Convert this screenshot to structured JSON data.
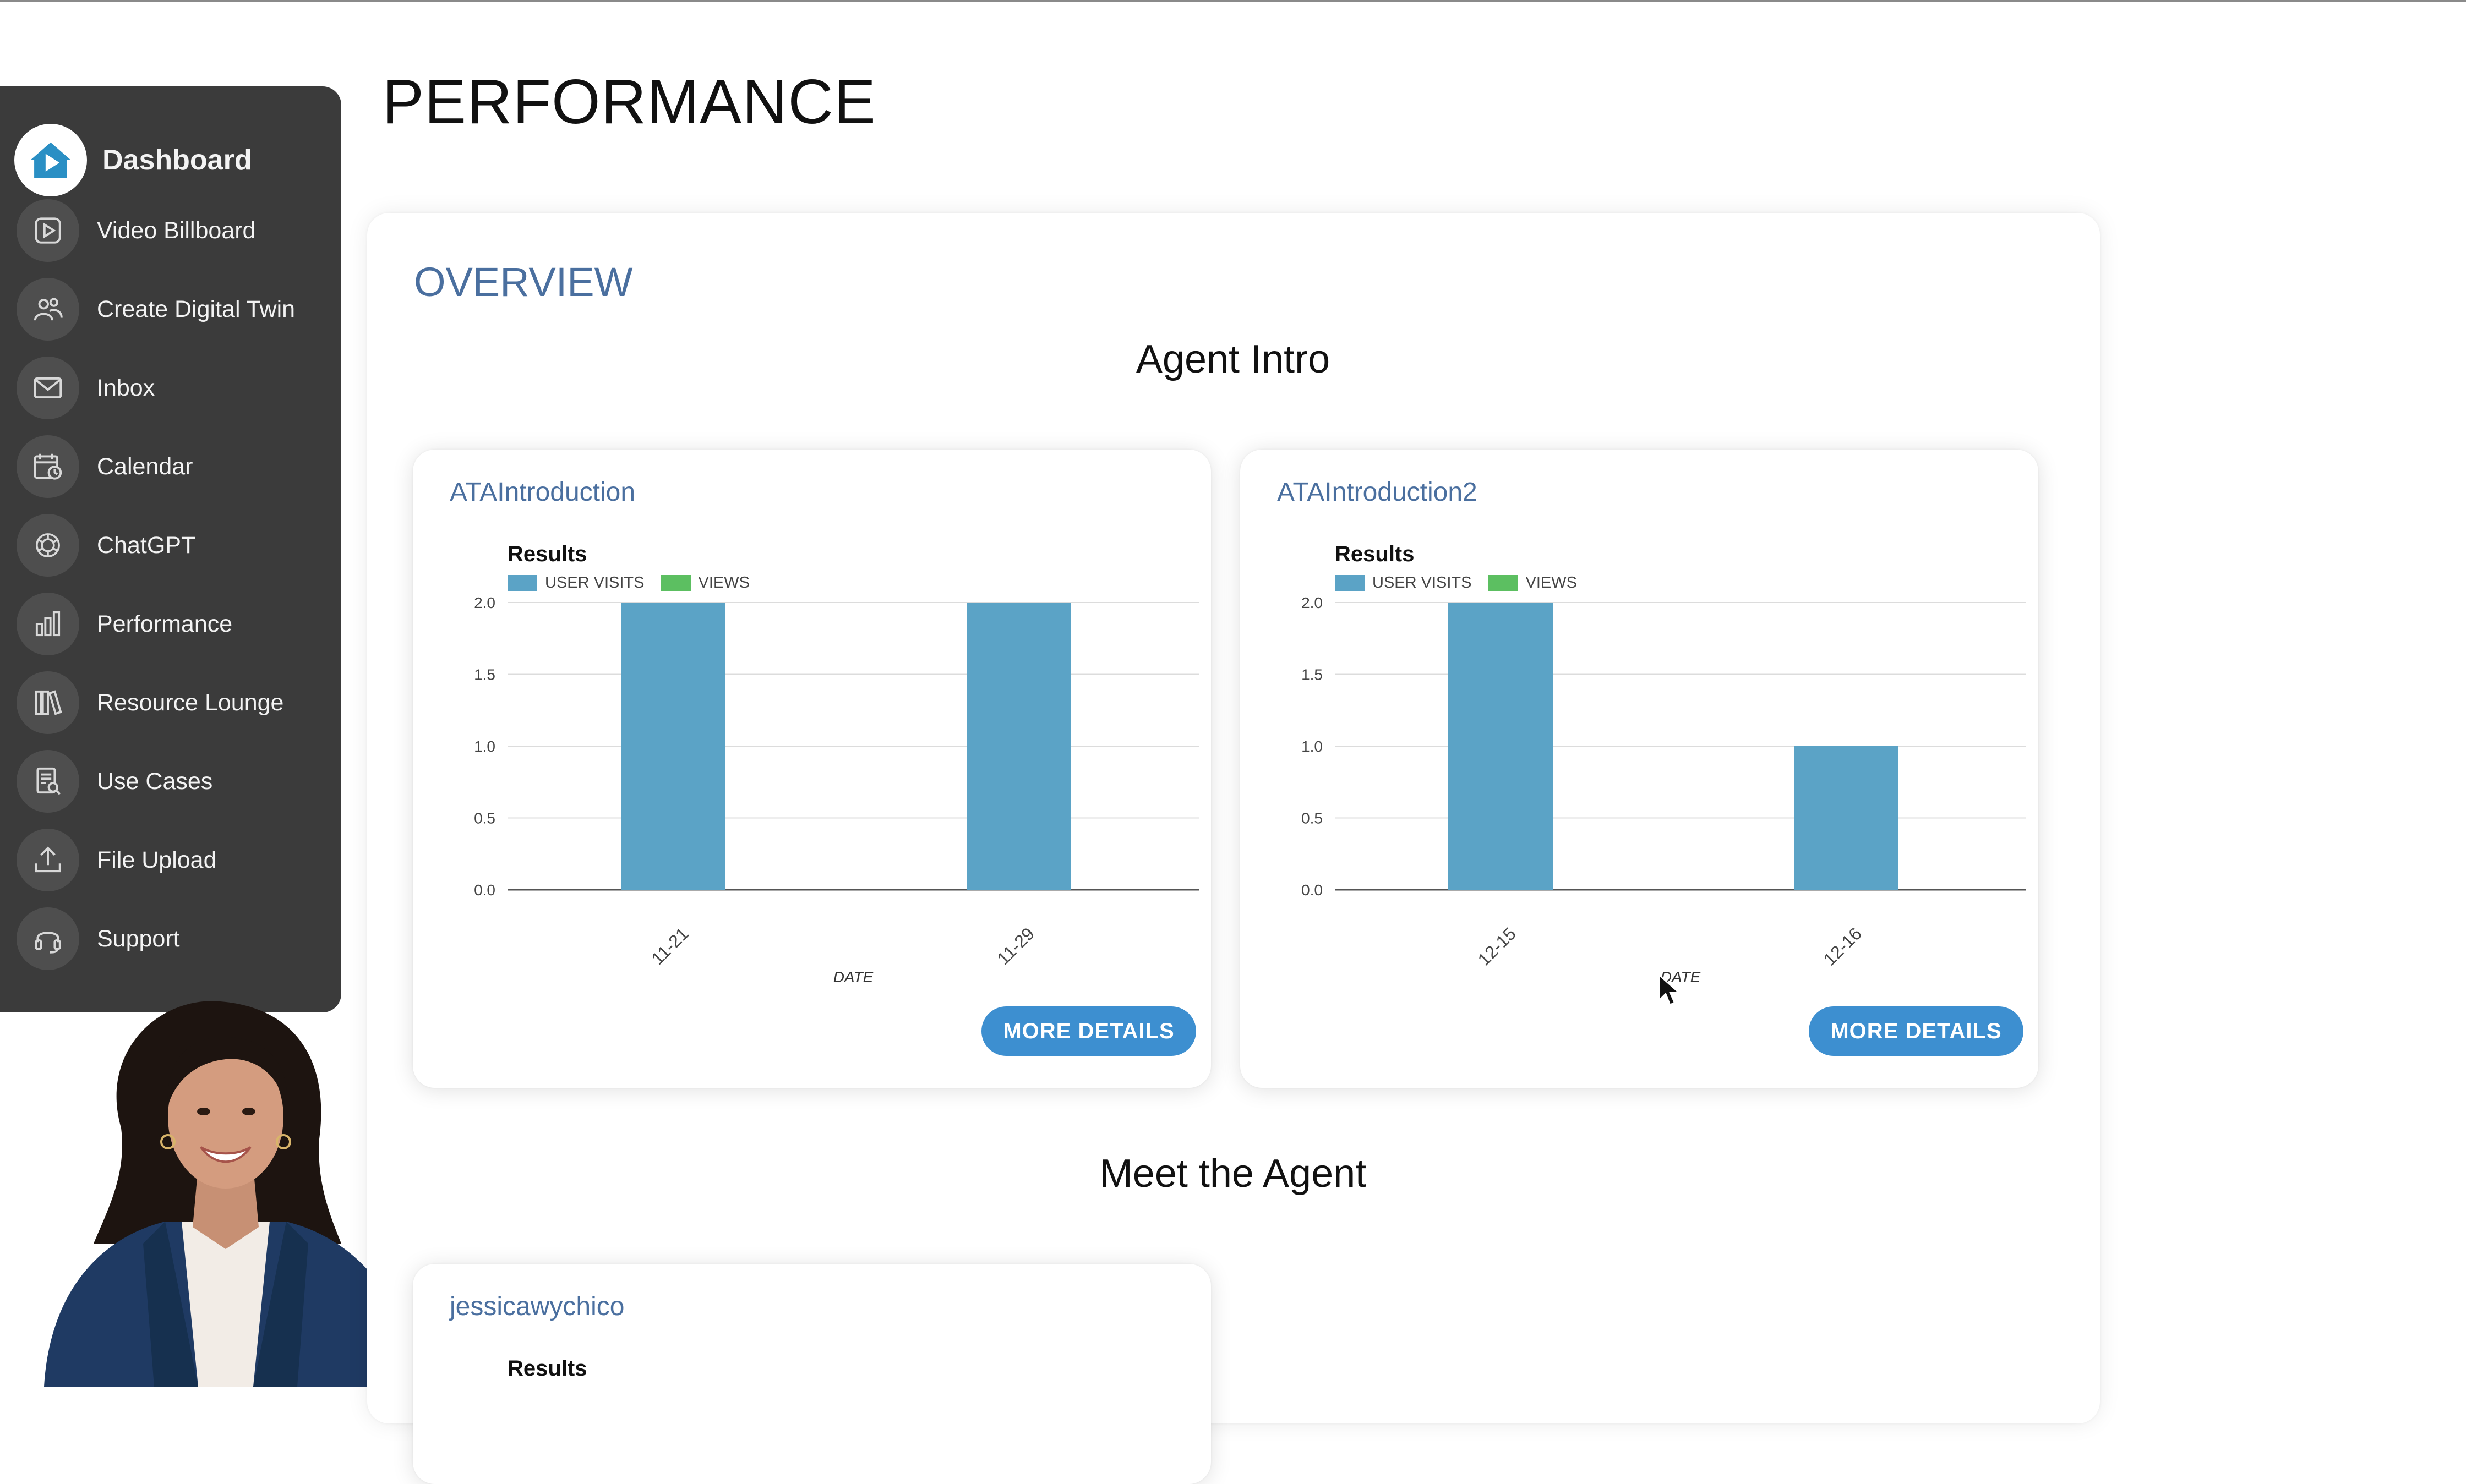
{
  "page": {
    "title": "PERFORMANCE"
  },
  "sidebar": {
    "items": [
      {
        "label": "Dashboard",
        "icon": "house-play-logo-icon"
      },
      {
        "label": "Video Billboard",
        "icon": "video-play-icon"
      },
      {
        "label": "Create Digital Twin",
        "icon": "people-icon"
      },
      {
        "label": "Inbox",
        "icon": "envelope-icon"
      },
      {
        "label": "Calendar",
        "icon": "calendar-clock-icon"
      },
      {
        "label": "ChatGPT",
        "icon": "chatgpt-icon"
      },
      {
        "label": "Performance",
        "icon": "bar-chart-icon"
      },
      {
        "label": "Resource Lounge",
        "icon": "books-icon"
      },
      {
        "label": "Use Cases",
        "icon": "document-search-icon"
      },
      {
        "label": "File Upload",
        "icon": "upload-icon"
      },
      {
        "label": "Support",
        "icon": "headset-icon"
      }
    ]
  },
  "main": {
    "overview_label": "OVERVIEW",
    "section_agent_intro": "Agent Intro",
    "section_meet_agent": "Meet the Agent",
    "legend": {
      "user_visits": "USER VISITS",
      "views": "VIEWS"
    },
    "colors": {
      "user_visits": "#5ba3c6",
      "views": "#5cbf61",
      "accent": "#3d8fd0",
      "heading": "#4a6f9f"
    },
    "cards": [
      {
        "name": "ATAIntroduction",
        "chart_title": "Results",
        "button": "MORE DETAILS"
      },
      {
        "name": "ATAIntroduction2",
        "chart_title": "Results",
        "button": "MORE DETAILS"
      },
      {
        "name": "jessicawychico",
        "chart_title": "Results"
      }
    ]
  },
  "chart_data": [
    {
      "type": "bar",
      "title": "Results",
      "xlabel": "DATE",
      "ylabel": "",
      "ylim": [
        0,
        2
      ],
      "yticks": [
        "0.0",
        "0.5",
        "1.0",
        "1.5",
        "2.0"
      ],
      "categories": [
        "11-21",
        "11-29"
      ],
      "series": [
        {
          "name": "USER VISITS",
          "values": [
            2,
            2
          ]
        },
        {
          "name": "VIEWS",
          "values": [
            0,
            0
          ]
        }
      ],
      "legend": "top-left",
      "grid": true
    },
    {
      "type": "bar",
      "title": "Results",
      "xlabel": "DATE",
      "ylabel": "",
      "ylim": [
        0,
        2
      ],
      "yticks": [
        "0.0",
        "0.5",
        "1.0",
        "1.5",
        "2.0"
      ],
      "categories": [
        "12-15",
        "12-16"
      ],
      "series": [
        {
          "name": "USER VISITS",
          "values": [
            2,
            1
          ]
        },
        {
          "name": "VIEWS",
          "values": [
            0,
            0
          ]
        }
      ],
      "legend": "top-left",
      "grid": true
    }
  ]
}
